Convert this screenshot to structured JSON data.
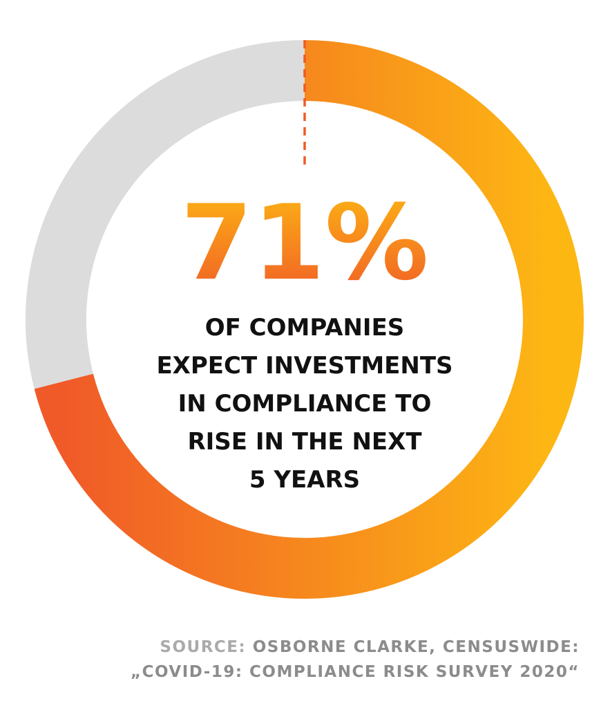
{
  "colors": {
    "track": "#dcdcdc",
    "gradient_start": "#f05a28",
    "gradient_end": "#fdb713",
    "divider": "#f05a28",
    "caption_text": "#111111",
    "source_label": "#aaaaaa",
    "source_text": "#8c8c8c"
  },
  "chart_data": {
    "type": "pie",
    "style": "donut",
    "values": [
      71,
      29
    ],
    "value_label": "71%",
    "caption_lines": [
      "OF COMPANIES",
      "EXPECT INVESTMENTS",
      "IN COMPLIANCE TO",
      "RISE IN THE NEXT",
      "5 YEARS"
    ]
  },
  "source": {
    "label": "SOURCE:",
    "line1": "OSBORNE CLARKE, CENSUSWIDE:",
    "line2": "„COVID-19: COMPLIANCE RISK SURVEY 2020“"
  }
}
